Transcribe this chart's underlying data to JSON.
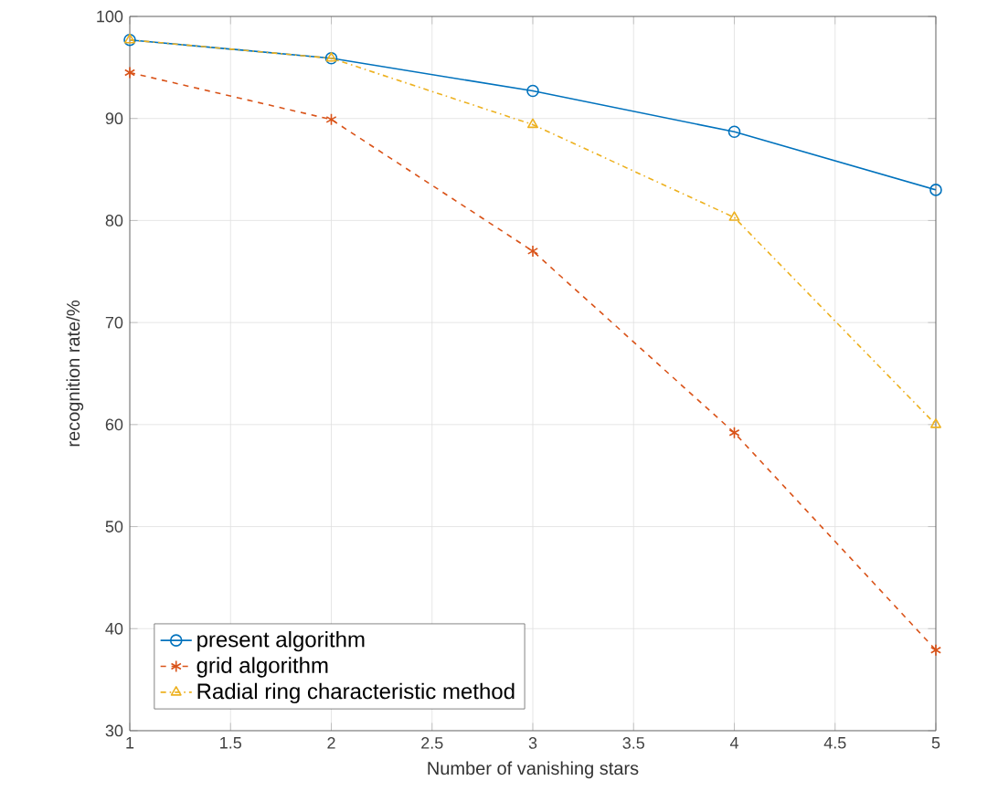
{
  "chart_data": {
    "type": "line",
    "xlabel": "Number of vanishing stars",
    "ylabel": "recognition rate/%",
    "x": [
      1,
      2,
      3,
      4,
      5
    ],
    "series": [
      {
        "name": "present algorithm",
        "color": "#0072bd",
        "values": [
          97.7,
          95.9,
          92.7,
          88.7,
          83.0
        ],
        "marker": "circle",
        "line_style": "solid"
      },
      {
        "name": "grid algorithm",
        "color": "#d95319",
        "values": [
          94.5,
          89.9,
          77.0,
          59.2,
          37.9
        ],
        "marker": "cross",
        "line_style": "dashed"
      },
      {
        "name": "Radial ring characteristic method",
        "color": "#edb120",
        "values": [
          97.7,
          95.9,
          89.4,
          80.3,
          60.0
        ],
        "marker": "triangle",
        "line_style": "dashdot"
      }
    ],
    "xlim": [
      1,
      5
    ],
    "xticks": [
      1,
      1.5,
      2,
      2.5,
      3,
      3.5,
      4,
      4.5,
      5
    ],
    "ylim": [
      30,
      100
    ],
    "yticks": [
      30,
      40,
      50,
      60,
      70,
      80,
      90,
      100
    ],
    "grid": true,
    "legend": "bottom left"
  }
}
